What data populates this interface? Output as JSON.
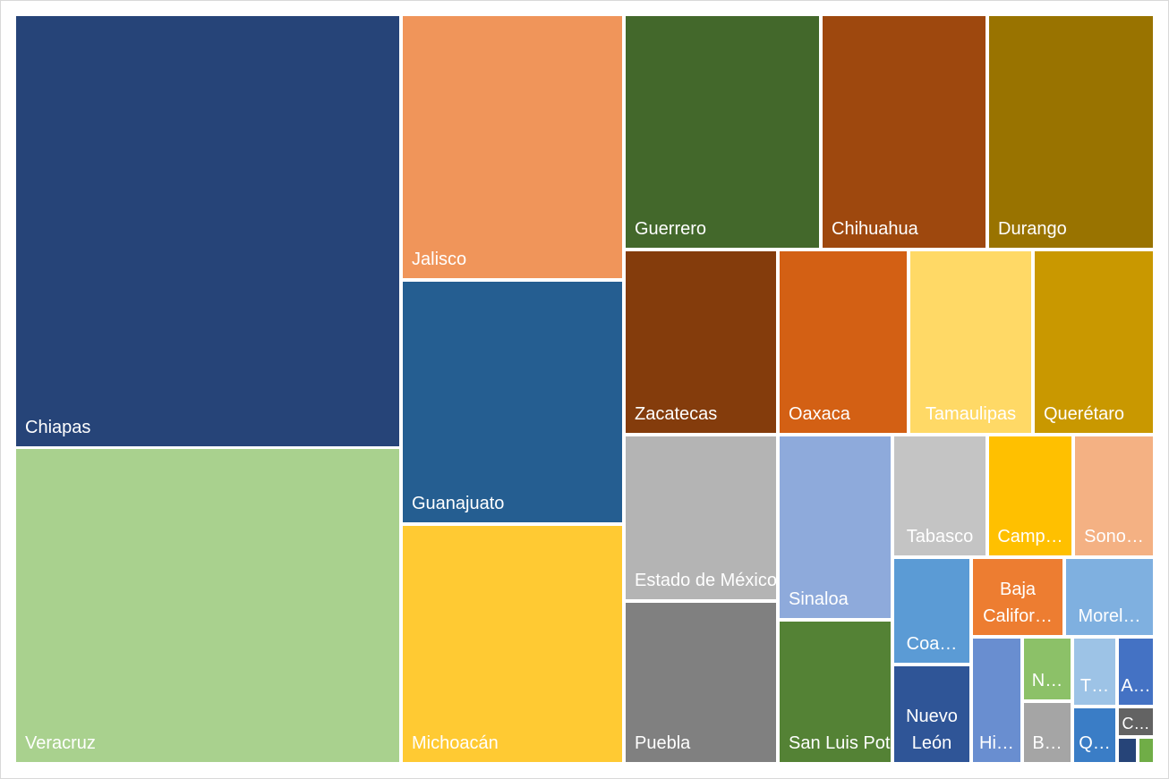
{
  "chart_data": {
    "type": "treemap",
    "title": "",
    "items": [
      {
        "label": "Chiapas",
        "color": "#264478"
      },
      {
        "label": "Veracruz",
        "color": "#a9d18e"
      },
      {
        "label": "Jalisco",
        "color": "#f0955a"
      },
      {
        "label": "Guanajuato",
        "color": "#255e91"
      },
      {
        "label": "Michoacán",
        "color": "#ffca33"
      },
      {
        "label": "Guerrero",
        "color": "#43682b"
      },
      {
        "label": "Chihuahua",
        "color": "#9e480e"
      },
      {
        "label": "Durango",
        "color": "#997300"
      },
      {
        "label": "Zacatecas",
        "color": "#843c0c"
      },
      {
        "label": "Oaxaca",
        "color": "#d36014"
      },
      {
        "label": "Tamaulipas",
        "color": "#ffd966"
      },
      {
        "label": "Querétaro",
        "color": "#c99800"
      },
      {
        "label": "Estado de\nMéxico",
        "color": "#b4b4b4"
      },
      {
        "label": "Puebla",
        "color": "#808080"
      },
      {
        "label": "Sinaloa",
        "color": "#8eaadb"
      },
      {
        "label": "San Luis\nPotosí",
        "color": "#548235"
      },
      {
        "label": "Tabasco",
        "color": "#c4c4c4"
      },
      {
        "label": "Camp…",
        "color": "#ffc000"
      },
      {
        "label": "Sono…",
        "color": "#f4b183"
      },
      {
        "label": "Coa…",
        "color": "#5b9bd5"
      },
      {
        "label": "Baja\nCalifor…",
        "color": "#ed7d31"
      },
      {
        "label": "Morel…",
        "color": "#7fb0e0"
      },
      {
        "label": "Nuevo\nLeón",
        "color": "#2f5597"
      },
      {
        "label": "Hi…",
        "color": "#698ed0"
      },
      {
        "label": "N…",
        "color": "#8cc168"
      },
      {
        "label": "T…",
        "color": "#9dc3e6"
      },
      {
        "label": "A…",
        "color": "#4472c4"
      },
      {
        "label": "B…",
        "color": "#a5a5a5"
      },
      {
        "label": "Q…",
        "color": "#3a7dc6"
      },
      {
        "label": "C…",
        "color": "#636363"
      },
      {
        "label": "",
        "color": "#264478"
      },
      {
        "label": "",
        "color": "#70ad47"
      }
    ]
  }
}
